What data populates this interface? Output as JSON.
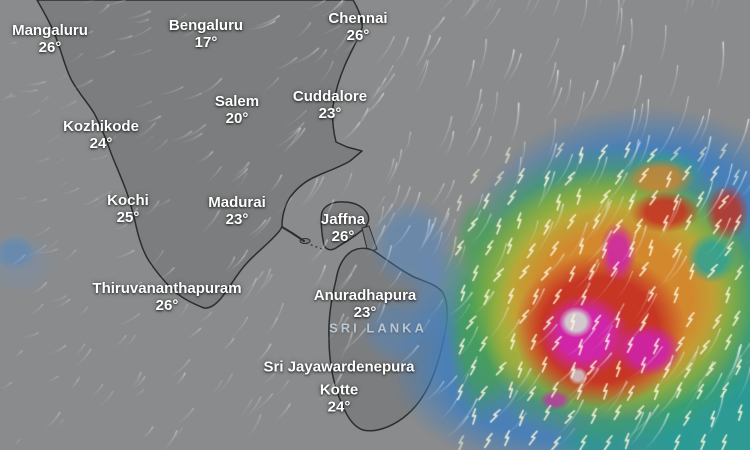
{
  "map": {
    "type": "wind-and-precipitation-weather-map",
    "region_label": "SRI LANKA",
    "cities": [
      {
        "name": "Mangaluru",
        "temp": "26°"
      },
      {
        "name": "Bengaluru",
        "temp": "17°"
      },
      {
        "name": "Chennai",
        "temp": "26°"
      },
      {
        "name": "Salem",
        "temp": "20°"
      },
      {
        "name": "Cuddalore",
        "temp": "23°"
      },
      {
        "name": "Kozhikode",
        "temp": "24°"
      },
      {
        "name": "Kochi",
        "temp": "25°"
      },
      {
        "name": "Madurai",
        "temp": "23°"
      },
      {
        "name": "Jaffna",
        "temp": "26°"
      },
      {
        "name": "Thiruvananthapuram",
        "temp": "26°"
      },
      {
        "name": "Anuradhapura",
        "temp": "23°"
      },
      {
        "name_line1": "Sri Jayawardenepura",
        "name_line2": "Kotte",
        "temp": "24°"
      }
    ],
    "colors": {
      "land": "#7c7d7e",
      "ocean": "#8a8b8c",
      "coastline": "#2b2d2e",
      "label_text": "#ffffff",
      "region_label_text": "#b9c7d2",
      "precip_scale": [
        "#4080c0",
        "#2aa898",
        "#4ea648",
        "#bab23a",
        "#d6862c",
        "#c62e22",
        "#d124b0",
        "#d2cdcf"
      ]
    },
    "icons": [
      "wind-streak-icon",
      "lightning-bolt-icon"
    ]
  }
}
